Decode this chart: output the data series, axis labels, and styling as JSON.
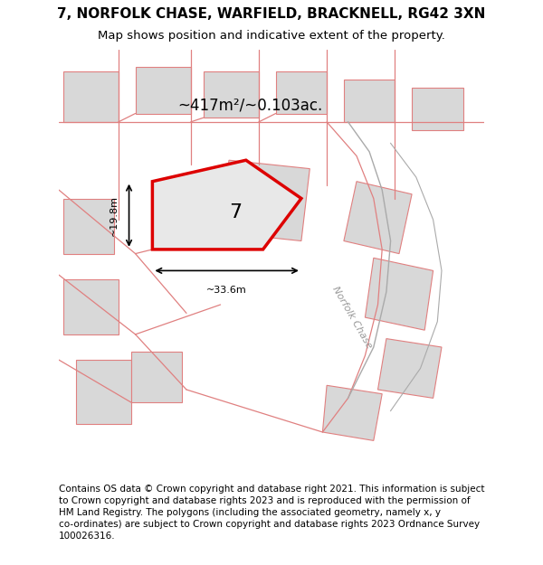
{
  "title_line1": "7, NORFOLK CHASE, WARFIELD, BRACKNELL, RG42 3XN",
  "title_line2": "Map shows position and indicative extent of the property.",
  "footer_text": "Contains OS data © Crown copyright and database right 2021. This information is subject\nto Crown copyright and database rights 2023 and is reproduced with the permission of\nHM Land Registry. The polygons (including the associated geometry, namely x, y\nco-ordinates) are subject to Crown copyright and database rights 2023 Ordnance Survey\n100026316.",
  "area_text": "~417m²/~0.103ac.",
  "plot_number": "7",
  "dim_width": "~33.6m",
  "dim_height": "~19.8m",
  "plot_stroke": "#dd0000",
  "plot_fill": "#e8e8e8",
  "building_stroke": "#e08080",
  "building_fill": "#d8d8d8",
  "road_color": "#e08080",
  "road_label": "Norfolk Chase",
  "title_fontsize": 11,
  "subtitle_fontsize": 9.5,
  "footer_fontsize": 7.5,
  "area_fontsize": 12,
  "plot_label_fontsize": 16,
  "dim_fontsize": 8,
  "road_label_fontsize": 8
}
